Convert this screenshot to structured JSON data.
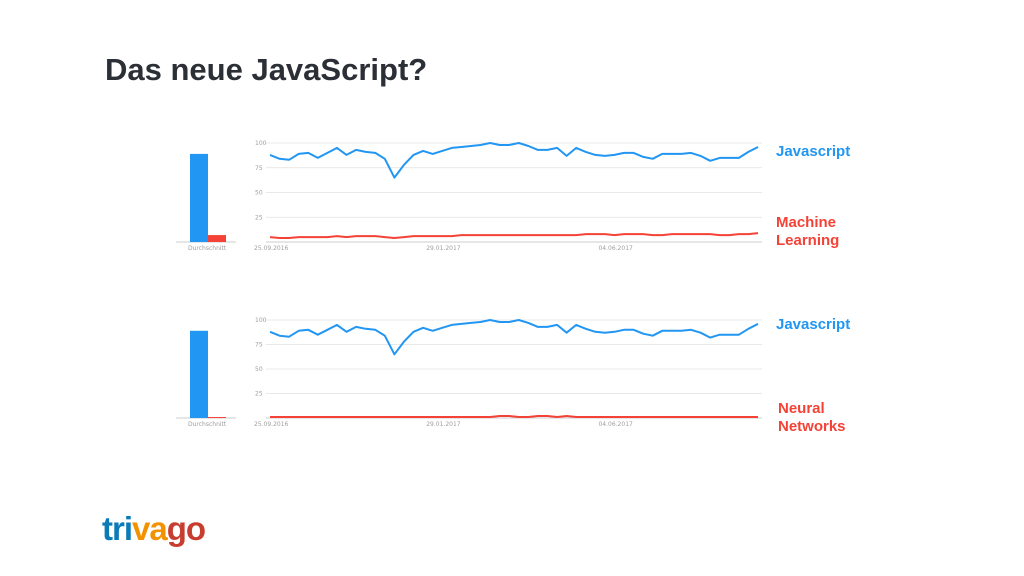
{
  "slide": {
    "title": "Das neue JavaScript?"
  },
  "colors": {
    "blue": "#2196f3",
    "red": "#f44336",
    "grid": "#e0e0e0",
    "title": "#2b2f36"
  },
  "logo": {
    "segments": [
      {
        "text": "tri",
        "color": "#0a7ab8"
      },
      {
        "text": "va",
        "color": "#f39200"
      },
      {
        "text": "go",
        "color": "#c73d2f"
      }
    ]
  },
  "chart_data": [
    {
      "type": "line",
      "average_label": "Durchschnitt",
      "averages": [
        89,
        7
      ],
      "ylim": [
        0,
        100
      ],
      "y_ticks": [
        25,
        50,
        75,
        100
      ],
      "x_tick_labels": [
        "25.09.2016",
        "29.01.2017",
        "04.06.2017"
      ],
      "x_tick_index": [
        0,
        18,
        36
      ],
      "grid": true,
      "legend_position": "right",
      "series": [
        {
          "name": "Javascript",
          "color": "#2196f3",
          "values": [
            88,
            84,
            83,
            89,
            90,
            85,
            90,
            95,
            88,
            93,
            91,
            90,
            84,
            65,
            78,
            88,
            92,
            89,
            92,
            95,
            96,
            97,
            98,
            100,
            98,
            98,
            100,
            97,
            93,
            93,
            95,
            87,
            95,
            91,
            88,
            87,
            88,
            90,
            90,
            86,
            84,
            89,
            89,
            89,
            90,
            87,
            82,
            85,
            85,
            85,
            91,
            96
          ]
        },
        {
          "name": "Machine Learning",
          "color": "#f44336",
          "values": [
            5,
            4,
            4,
            5,
            5,
            5,
            5,
            6,
            5,
            6,
            6,
            6,
            5,
            4,
            5,
            6,
            6,
            6,
            6,
            6,
            7,
            7,
            7,
            7,
            7,
            7,
            7,
            7,
            7,
            7,
            7,
            7,
            7,
            8,
            8,
            8,
            7,
            8,
            8,
            8,
            7,
            7,
            8,
            8,
            8,
            8,
            8,
            7,
            7,
            8,
            8,
            9
          ]
        }
      ]
    },
    {
      "type": "line",
      "average_label": "Durchschnitt",
      "averages": [
        89,
        1
      ],
      "ylim": [
        0,
        100
      ],
      "y_ticks": [
        25,
        50,
        75,
        100
      ],
      "x_tick_labels": [
        "25.09.2016",
        "29.01.2017",
        "04.06.2017"
      ],
      "x_tick_index": [
        0,
        18,
        36
      ],
      "grid": true,
      "legend_position": "right",
      "series": [
        {
          "name": "Javascript",
          "color": "#2196f3",
          "values": [
            88,
            84,
            83,
            89,
            90,
            85,
            90,
            95,
            88,
            93,
            91,
            90,
            84,
            65,
            78,
            88,
            92,
            89,
            92,
            95,
            96,
            97,
            98,
            100,
            98,
            98,
            100,
            97,
            93,
            93,
            95,
            87,
            95,
            91,
            88,
            87,
            88,
            90,
            90,
            86,
            84,
            89,
            89,
            89,
            90,
            87,
            82,
            85,
            85,
            85,
            91,
            96
          ]
        },
        {
          "name": "Neural Networks",
          "color": "#f44336",
          "values": [
            1,
            1,
            1,
            1,
            1,
            1,
            1,
            1,
            1,
            1,
            1,
            1,
            1,
            1,
            1,
            1,
            1,
            1,
            1,
            1,
            1,
            1,
            1,
            1,
            2,
            2,
            1,
            1,
            2,
            2,
            1,
            2,
            1,
            1,
            1,
            1,
            1,
            1,
            1,
            1,
            1,
            1,
            1,
            1,
            1,
            1,
            1,
            1,
            1,
            1,
            1,
            1
          ]
        }
      ]
    }
  ]
}
